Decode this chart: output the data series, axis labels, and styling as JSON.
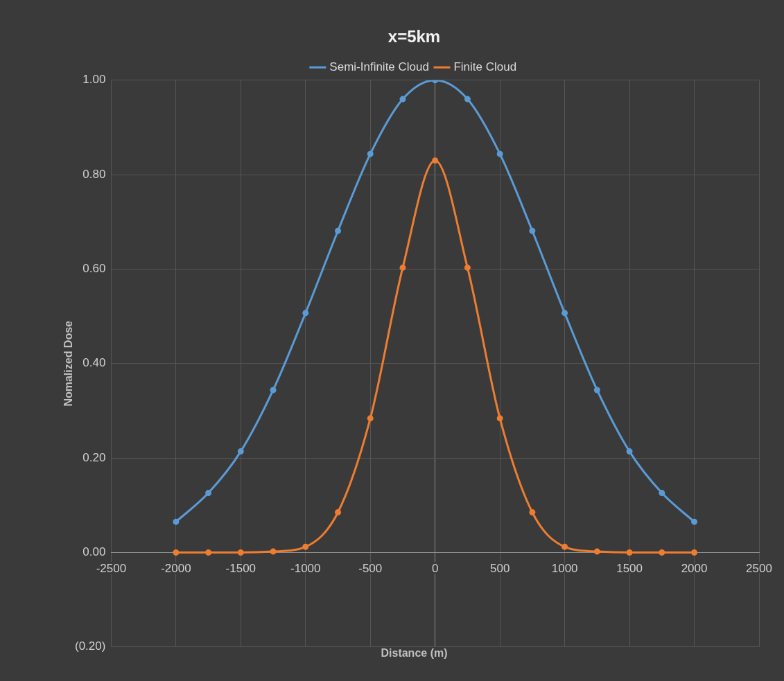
{
  "chart_data": {
    "type": "line",
    "title": "x=5km",
    "xlabel": "Distance (m)",
    "ylabel": "Nomalized Dose",
    "x": [
      -2000,
      -1750,
      -1500,
      -1250,
      -1000,
      -750,
      -500,
      -250,
      0,
      250,
      500,
      750,
      1000,
      1250,
      1500,
      1750,
      2000
    ],
    "series": [
      {
        "name": "Semi-Infinite Cloud",
        "color": "#5b9bd5",
        "values": [
          0.065,
          0.126,
          0.214,
          0.344,
          0.507,
          0.681,
          0.844,
          0.96,
          1.0,
          0.96,
          0.844,
          0.681,
          0.507,
          0.344,
          0.214,
          0.126,
          0.065
        ]
      },
      {
        "name": "Finite Cloud",
        "color": "#ed7d31",
        "values": [
          0,
          0,
          0,
          0.002,
          0.012,
          0.085,
          0.284,
          0.603,
          0.83,
          0.603,
          0.284,
          0.085,
          0.012,
          0.002,
          0,
          0,
          0
        ]
      }
    ],
    "xlim": [
      -2500,
      2500
    ],
    "xticks": [
      -2500,
      -2000,
      -1500,
      -1000,
      -500,
      0,
      500,
      1000,
      1500,
      2000,
      2500
    ],
    "ylim": [
      -0.2,
      1.0
    ],
    "yticks": [
      {
        "value": -0.2,
        "label": "(0.20)"
      },
      {
        "value": 0,
        "label": "0.00"
      },
      {
        "value": 0.2,
        "label": "0.20"
      },
      {
        "value": 0.4,
        "label": "0.40"
      },
      {
        "value": 0.6,
        "label": "0.60"
      },
      {
        "value": 0.8,
        "label": "0.80"
      },
      {
        "value": 1.0,
        "label": "1.00"
      }
    ],
    "grid": true,
    "legend": "top",
    "marker": "circle",
    "line_style": "solid"
  }
}
